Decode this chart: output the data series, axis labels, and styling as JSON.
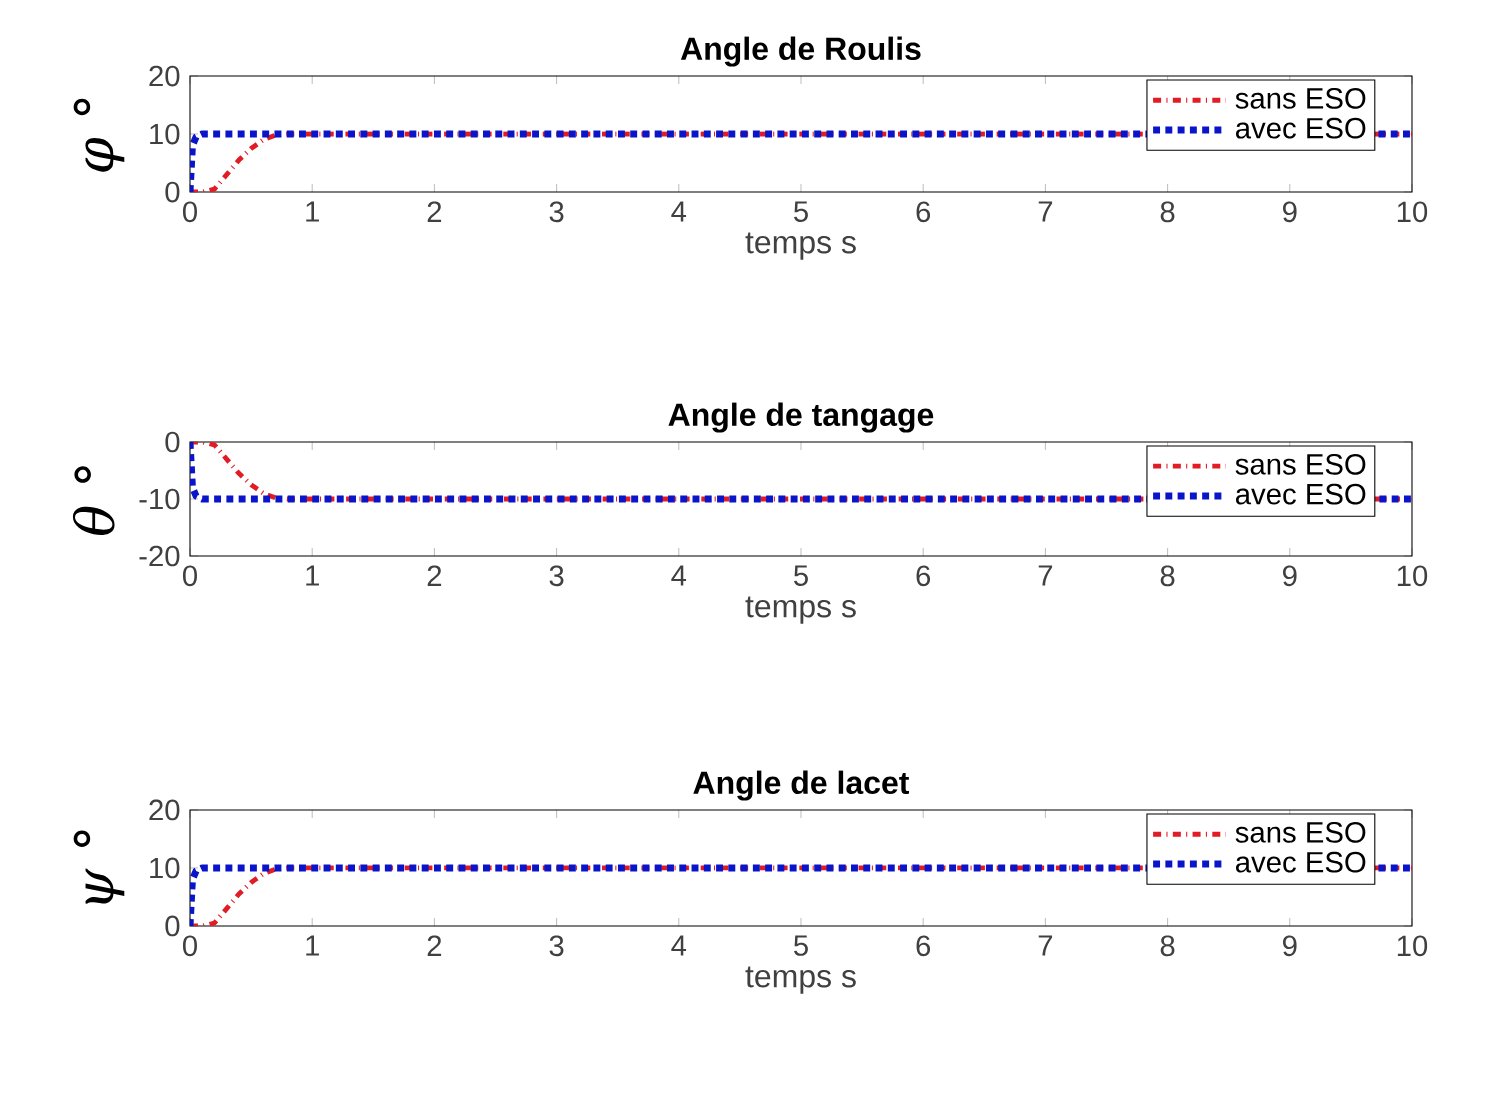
{
  "chart_data": [
    {
      "type": "line",
      "title": "Angle de Roulis",
      "xlabel": "temps s",
      "ylabel": "φ °",
      "xlim": [
        0,
        10
      ],
      "ylim": [
        0,
        20
      ],
      "xticks": [
        0,
        1,
        2,
        3,
        4,
        5,
        6,
        7,
        8,
        9,
        10
      ],
      "yticks": [
        0,
        10,
        20
      ],
      "legend": "top right",
      "series": [
        {
          "name": "sans ESO",
          "color": "#e01c24",
          "line_style": "dashdot",
          "x": [
            0,
            0.1,
            0.2,
            0.3,
            0.4,
            0.5,
            0.6,
            0.7,
            0.8,
            1,
            10
          ],
          "values": [
            0,
            0,
            0.5,
            3,
            5.5,
            7.5,
            9,
            9.8,
            10,
            10,
            10
          ]
        },
        {
          "name": "avec ESO",
          "color": "#0a14c8",
          "line_style": "dotted",
          "x": [
            0,
            0.02,
            0.05,
            0.1,
            10
          ],
          "values": [
            0,
            8,
            9.5,
            10,
            10
          ]
        }
      ]
    },
    {
      "type": "line",
      "title": "Angle de tangage",
      "xlabel": "temps s",
      "ylabel": "θ °",
      "xlim": [
        0,
        10
      ],
      "ylim": [
        -20,
        0
      ],
      "xticks": [
        0,
        1,
        2,
        3,
        4,
        5,
        6,
        7,
        8,
        9,
        10
      ],
      "yticks": [
        -20,
        -10,
        0
      ],
      "legend": "top right",
      "series": [
        {
          "name": "sans ESO",
          "color": "#e01c24",
          "line_style": "dashdot",
          "x": [
            0,
            0.1,
            0.2,
            0.3,
            0.4,
            0.5,
            0.6,
            0.7,
            0.8,
            1,
            10
          ],
          "values": [
            0,
            0,
            -0.5,
            -3,
            -5.5,
            -7.5,
            -9,
            -9.8,
            -10,
            -10,
            -10
          ]
        },
        {
          "name": "avec ESO",
          "color": "#0a14c8",
          "line_style": "dotted",
          "x": [
            0,
            0.02,
            0.05,
            0.1,
            10
          ],
          "values": [
            0,
            -8,
            -9.5,
            -10,
            -10
          ]
        }
      ]
    },
    {
      "type": "line",
      "title": "Angle de lacet",
      "xlabel": "temps s",
      "ylabel": "ψ °",
      "xlim": [
        0,
        10
      ],
      "ylim": [
        0,
        20
      ],
      "xticks": [
        0,
        1,
        2,
        3,
        4,
        5,
        6,
        7,
        8,
        9,
        10
      ],
      "yticks": [
        0,
        10,
        20
      ],
      "legend": "top right",
      "series": [
        {
          "name": "sans ESO",
          "color": "#e01c24",
          "line_style": "dashdot",
          "x": [
            0,
            0.1,
            0.2,
            0.3,
            0.4,
            0.5,
            0.6,
            0.7,
            0.8,
            1,
            10
          ],
          "values": [
            0,
            0,
            0.5,
            3,
            5.5,
            7.5,
            9,
            9.8,
            10,
            10,
            10
          ]
        },
        {
          "name": "avec ESO",
          "color": "#0a14c8",
          "line_style": "dotted",
          "x": [
            0,
            0.02,
            0.05,
            0.1,
            10
          ],
          "values": [
            0,
            8,
            9.5,
            10,
            10
          ]
        }
      ]
    }
  ]
}
